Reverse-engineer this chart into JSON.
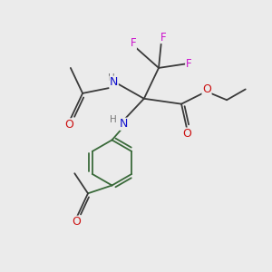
{
  "bg_color": "#ebebeb",
  "atom_colors": {
    "N": "#1010cc",
    "O": "#cc1010",
    "F": "#cc10cc"
  },
  "bond_color": "#3a3a3a",
  "ring_color": "#3a6a3a",
  "lw": 1.3,
  "lw_ring": 1.3,
  "fontsize_label": 8.5,
  "fontsize_NH": 8.0
}
